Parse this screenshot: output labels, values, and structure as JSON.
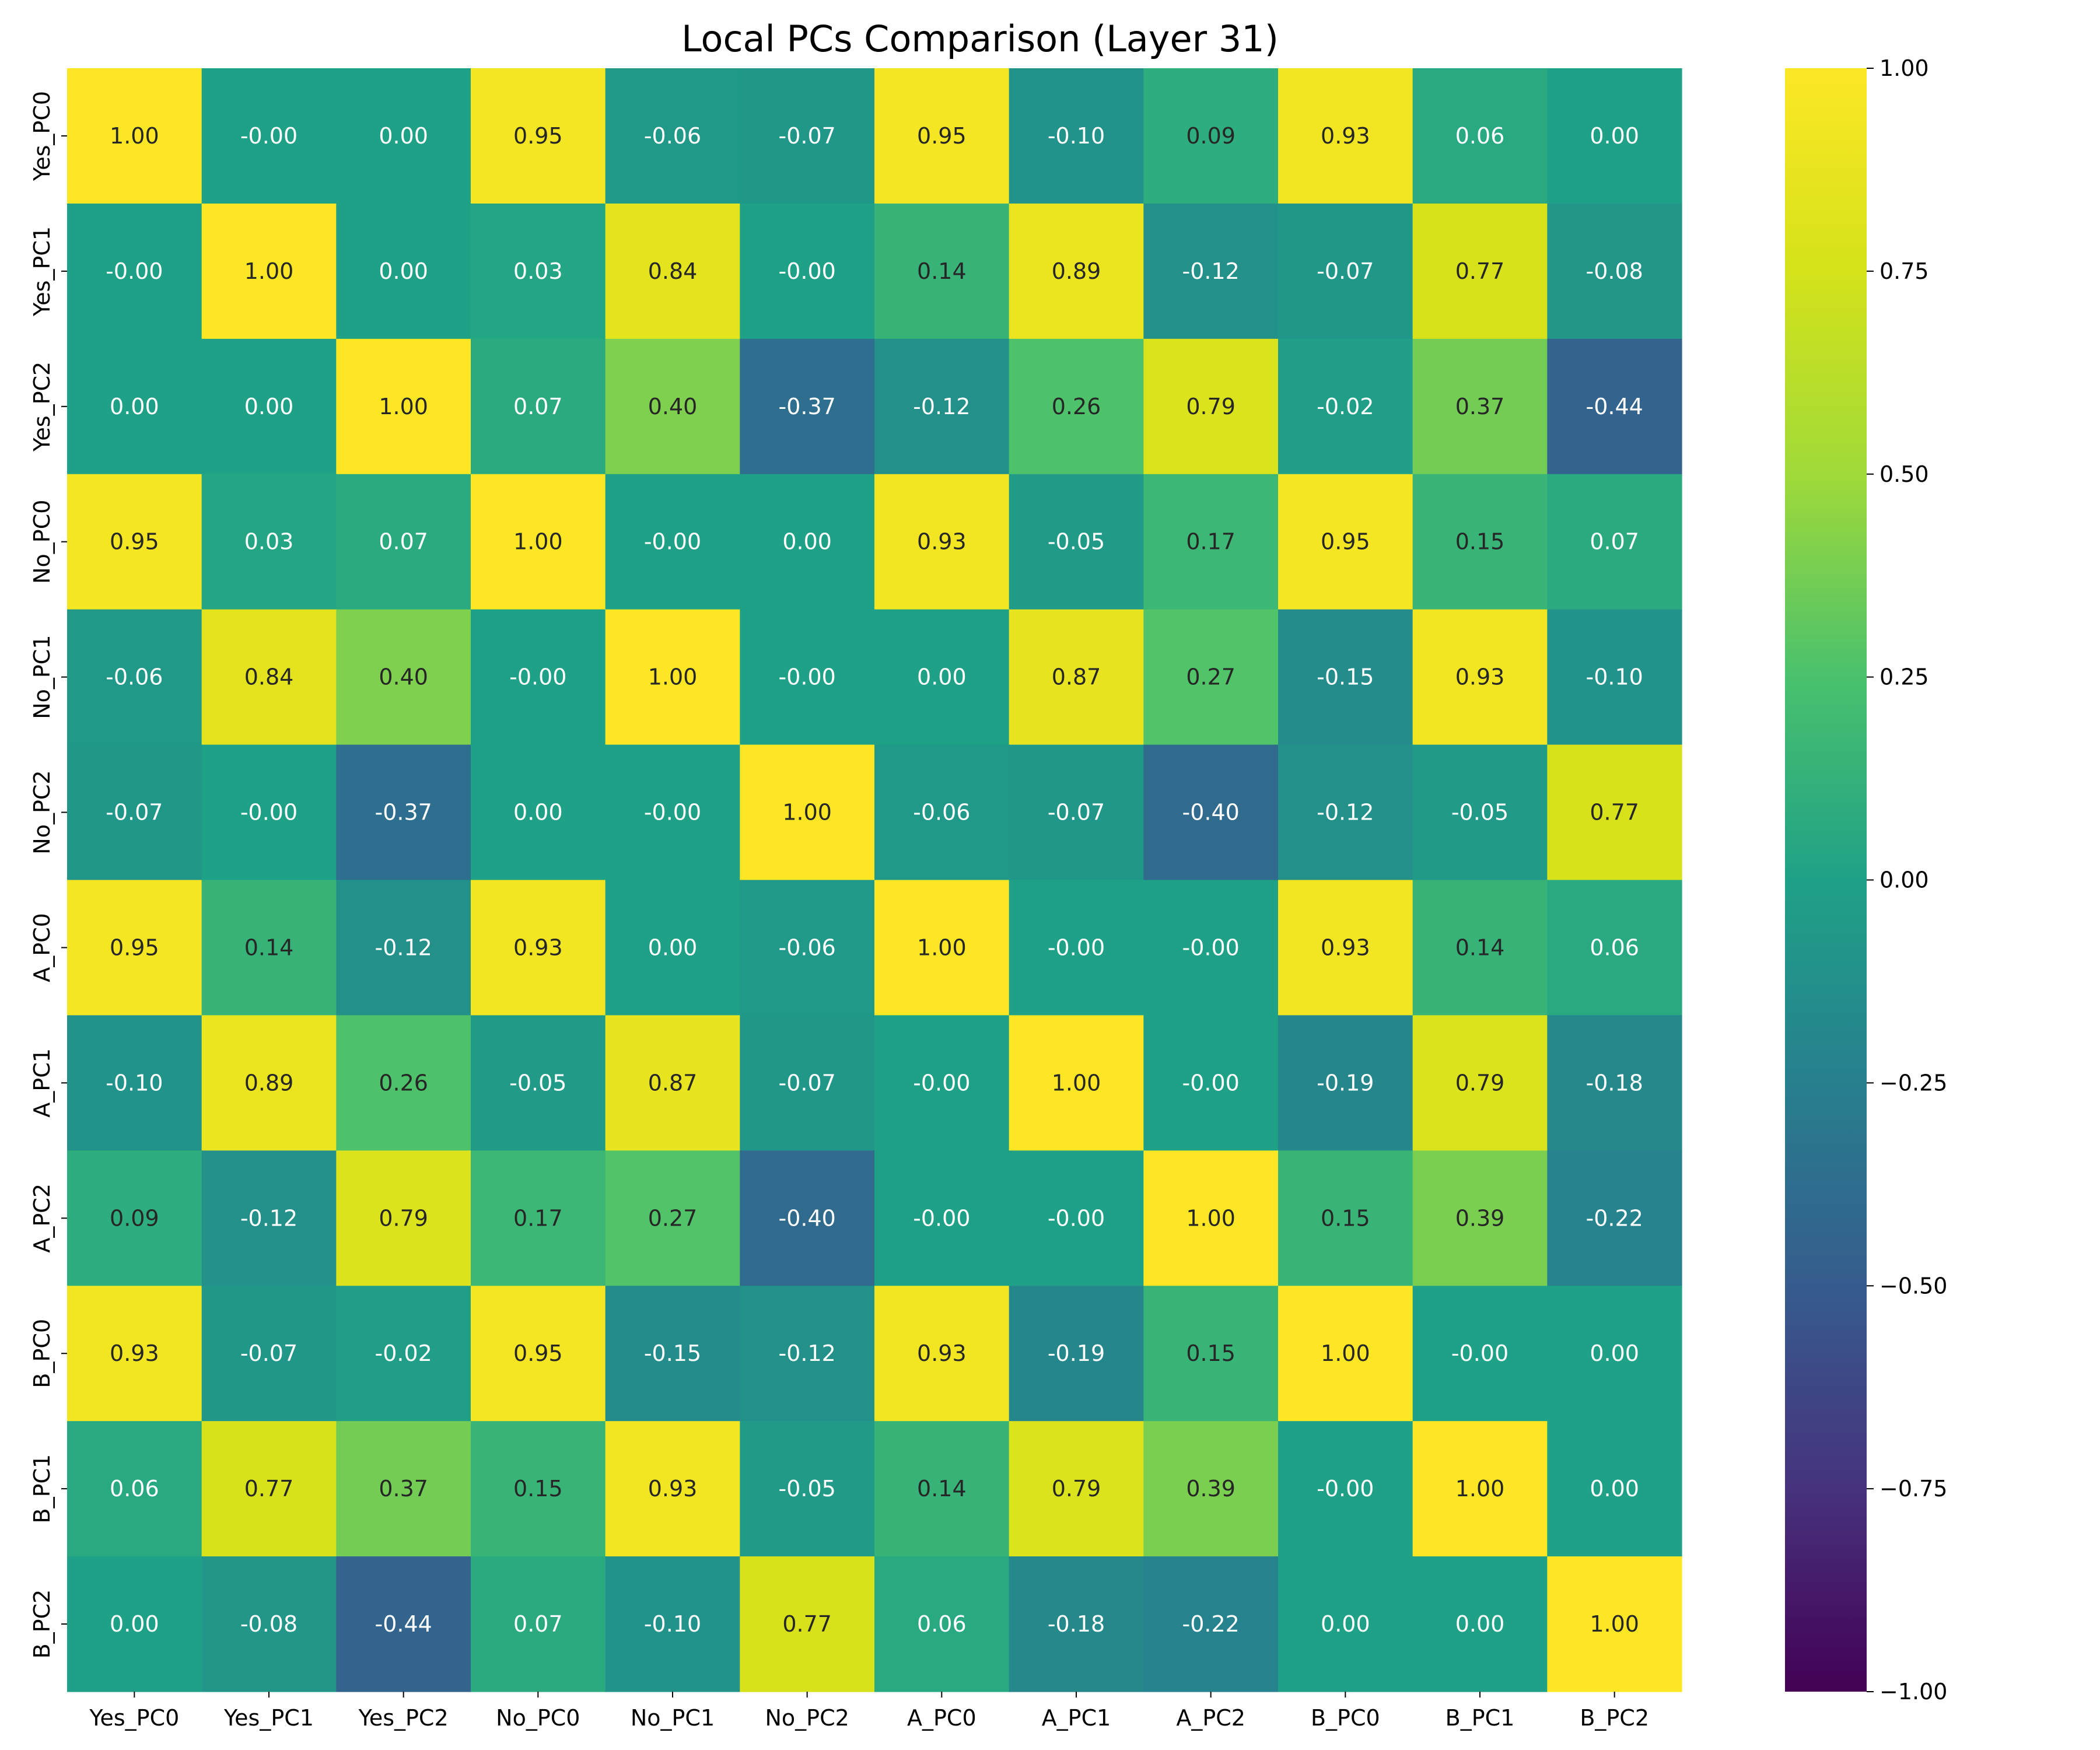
{
  "chart_data": {
    "type": "heatmap",
    "title": "Local PCs Comparison (Layer 31)",
    "x_labels": [
      "Yes_PC0",
      "Yes_PC1",
      "Yes_PC2",
      "No_PC0",
      "No_PC1",
      "No_PC2",
      "A_PC0",
      "A_PC1",
      "A_PC2",
      "B_PC0",
      "B_PC1",
      "B_PC2"
    ],
    "y_labels": [
      "Yes_PC0",
      "Yes_PC1",
      "Yes_PC2",
      "No_PC0",
      "No_PC1",
      "No_PC2",
      "A_PC0",
      "A_PC1",
      "A_PC2",
      "B_PC0",
      "B_PC1",
      "B_PC2"
    ],
    "cell_labels": [
      [
        "1.00",
        "-0.00",
        "0.00",
        "0.95",
        "-0.06",
        "-0.07",
        "0.95",
        "-0.10",
        "0.09",
        "0.93",
        "0.06",
        "0.00"
      ],
      [
        "-0.00",
        "1.00",
        "0.00",
        "0.03",
        "0.84",
        "-0.00",
        "0.14",
        "0.89",
        "-0.12",
        "-0.07",
        "0.77",
        "-0.08"
      ],
      [
        "0.00",
        "0.00",
        "1.00",
        "0.07",
        "0.40",
        "-0.37",
        "-0.12",
        "0.26",
        "0.79",
        "-0.02",
        "0.37",
        "-0.44"
      ],
      [
        "0.95",
        "0.03",
        "0.07",
        "1.00",
        "-0.00",
        "0.00",
        "0.93",
        "-0.05",
        "0.17",
        "0.95",
        "0.15",
        "0.07"
      ],
      [
        "-0.06",
        "0.84",
        "0.40",
        "-0.00",
        "1.00",
        "-0.00",
        "0.00",
        "0.87",
        "0.27",
        "-0.15",
        "0.93",
        "-0.10"
      ],
      [
        "-0.07",
        "-0.00",
        "-0.37",
        "0.00",
        "-0.00",
        "1.00",
        "-0.06",
        "-0.07",
        "-0.40",
        "-0.12",
        "-0.05",
        "0.77"
      ],
      [
        "0.95",
        "0.14",
        "-0.12",
        "0.93",
        "0.00",
        "-0.06",
        "1.00",
        "-0.00",
        "-0.00",
        "0.93",
        "0.14",
        "0.06"
      ],
      [
        "-0.10",
        "0.89",
        "0.26",
        "-0.05",
        "0.87",
        "-0.07",
        "-0.00",
        "1.00",
        "-0.00",
        "-0.19",
        "0.79",
        "-0.18"
      ],
      [
        "0.09",
        "-0.12",
        "0.79",
        "0.17",
        "0.27",
        "-0.40",
        "-0.00",
        "-0.00",
        "1.00",
        "0.15",
        "0.39",
        "-0.22"
      ],
      [
        "0.93",
        "-0.07",
        "-0.02",
        "0.95",
        "-0.15",
        "-0.12",
        "0.93",
        "-0.19",
        "0.15",
        "1.00",
        "-0.00",
        "0.00"
      ],
      [
        "0.06",
        "0.77",
        "0.37",
        "0.15",
        "0.93",
        "-0.05",
        "0.14",
        "0.79",
        "0.39",
        "-0.00",
        "1.00",
        "0.00"
      ],
      [
        "0.00",
        "-0.08",
        "-0.44",
        "0.07",
        "-0.10",
        "0.77",
        "0.06",
        "-0.18",
        "-0.22",
        "0.00",
        "0.00",
        "1.00"
      ]
    ],
    "colormap": "viridis",
    "vmin": -1.0,
    "vmax": 1.0,
    "colorbar_ticks": [
      "1.00",
      "0.75",
      "0.50",
      "0.25",
      "0.00",
      "−0.25",
      "−0.50",
      "−0.75",
      "−1.00"
    ],
    "colorbar_tick_values": [
      1.0,
      0.75,
      0.5,
      0.25,
      0.0,
      -0.25,
      -0.5,
      -0.75,
      -1.0
    ],
    "legend": "colorbar-right",
    "grid": false
  }
}
